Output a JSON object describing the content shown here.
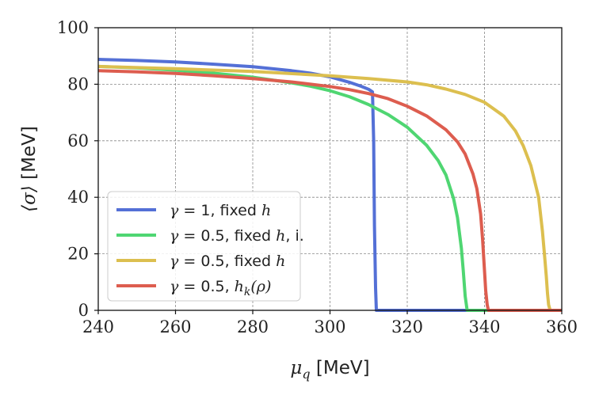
{
  "chart_data": {
    "type": "line",
    "title": "",
    "xlabel": {
      "symbol": "μ",
      "subscript": "q",
      "unit": "[MeV]"
    },
    "ylabel": {
      "symbol": "⟨σ⟩",
      "unit": "[MeV]"
    },
    "xlim": [
      240,
      360
    ],
    "ylim": [
      0,
      100
    ],
    "xticks": [
      "240",
      "260",
      "280",
      "300",
      "320",
      "340",
      "360"
    ],
    "yticks": [
      "0",
      "20",
      "40",
      "60",
      "80",
      "100"
    ],
    "grid": true,
    "legend_position": "lower-left",
    "series": [
      {
        "name": "γ = 1, fixed h",
        "color": "#5470d6",
        "x": [
          240,
          250,
          260,
          270,
          280,
          290,
          295,
          300,
          305,
          308,
          310,
          311,
          311.3,
          311.5,
          311.8,
          312,
          360
        ],
        "y": [
          88.8,
          88.4,
          87.9,
          87.1,
          86.2,
          84.8,
          83.9,
          82.6,
          80.7,
          79.3,
          78.2,
          77.3,
          60,
          30,
          8,
          0,
          0
        ]
      },
      {
        "name": "γ = 0.5, fixed h, i.",
        "color": "#4fd672",
        "x": [
          240,
          250,
          260,
          270,
          280,
          290,
          295,
          300,
          305,
          310,
          315,
          320,
          325,
          328,
          330,
          332,
          333,
          334,
          334.5,
          335,
          335.5,
          360
        ],
        "y": [
          86.3,
          85.8,
          85.0,
          83.9,
          82.5,
          80.5,
          79.3,
          77.7,
          75.6,
          72.8,
          69.3,
          64.8,
          58.4,
          53.0,
          47.9,
          39.5,
          32.8,
          22.0,
          14.0,
          5.0,
          0,
          0
        ]
      },
      {
        "name": "γ = 0.5, fixed h",
        "color": "#dcbf4f",
        "x": [
          240,
          260,
          280,
          300,
          310,
          320,
          325,
          330,
          335,
          340,
          345,
          348,
          350,
          352,
          354,
          355,
          355.5,
          356,
          356.3,
          356.6,
          357,
          360
        ],
        "y": [
          86.3,
          85.5,
          84.5,
          83.0,
          82.0,
          80.8,
          79.8,
          78.3,
          76.4,
          73.6,
          68.7,
          63.5,
          58.3,
          51.2,
          40.0,
          28.0,
          20.0,
          12.0,
          6.0,
          2.0,
          0,
          0
        ]
      },
      {
        "name": "γ = 0.5, h_k(ρ)",
        "color": "#dd5d4f",
        "x": [
          240,
          250,
          260,
          270,
          280,
          290,
          300,
          305,
          310,
          315,
          320,
          325,
          330,
          333,
          335,
          337,
          338,
          339,
          339.5,
          340,
          340.3,
          340.7,
          341,
          360
        ],
        "y": [
          84.8,
          84.4,
          83.8,
          83.0,
          82.0,
          80.8,
          79.2,
          78.1,
          76.7,
          74.9,
          72.2,
          68.8,
          63.9,
          59.6,
          55.3,
          48.3,
          43.1,
          34.1,
          25.0,
          14.0,
          7.0,
          2.0,
          0,
          0
        ]
      }
    ]
  }
}
